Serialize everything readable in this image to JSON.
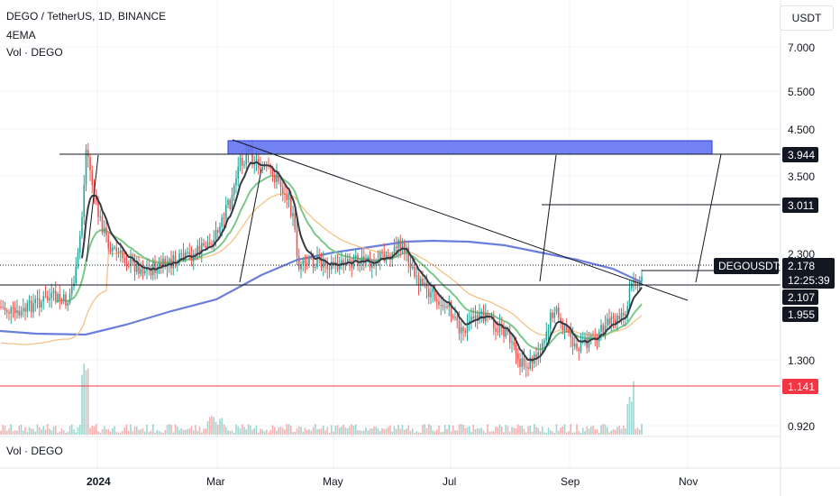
{
  "header": {
    "title": "DEGO / TetherUS, 1D, BINANCE",
    "ema_label": "4EMA",
    "volume_label": "Vol · DEGO"
  },
  "price_axis": {
    "currency": "USDT",
    "ticks": [
      "7.000",
      "5.500",
      "4.500",
      "3.500",
      "2.300",
      "1.300",
      "0.920"
    ]
  },
  "time_axis": {
    "ticks": [
      "2024",
      "Mar",
      "May",
      "Jul",
      "Sep",
      "Nov"
    ]
  },
  "price_labels": {
    "level_top": "3.944",
    "level_mid": "3.011",
    "symbol": "DEGOUSDT",
    "last_price": "2.178",
    "countdown": "12:25:39",
    "ema_value": "2.107",
    "level_low": "1.955",
    "support": "1.141"
  },
  "volume_pane": {
    "label": "Vol · DEGO"
  },
  "colors": {
    "up": "#26a69a",
    "down": "#ef5350",
    "support_line": "#f23645",
    "ema_fast": "#363a45",
    "ema_green": "#7cc88a",
    "ema_orange": "#f5c28a",
    "ema_blue": "#6a7fdb",
    "zone_fill": "#5b6cf0"
  },
  "chart_data": {
    "type": "candlestick",
    "series": [
      {
        "name": "DEGOUSDT",
        "values": "daily candles, Nov 2023 - Oct 2024"
      },
      {
        "name": "4EMA",
        "values": "moving averages"
      }
    ],
    "y_scale": "log",
    "ylim": [
      0.86,
      8.2
    ],
    "levels": [
      3.944,
      3.011,
      2.178,
      2.107,
      1.955,
      1.141
    ],
    "grid": true,
    "legend": "top-left"
  }
}
